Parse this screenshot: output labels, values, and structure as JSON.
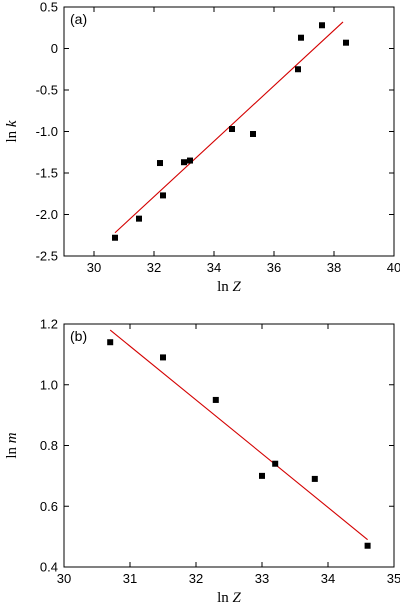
{
  "chart_data": [
    {
      "type": "scatter",
      "panel_label": "(a)",
      "xlabel": {
        "prefix": "ln ",
        "var": "Z"
      },
      "ylabel": {
        "prefix": "ln ",
        "var": "k"
      },
      "xlim": [
        29,
        40
      ],
      "ylim": [
        -2.5,
        0.5
      ],
      "xticks": [
        30,
        32,
        34,
        36,
        38,
        40
      ],
      "yticks": [
        -2.5,
        -2.0,
        -1.5,
        -1.0,
        -0.5,
        0,
        0.5
      ],
      "ytick_labels": [
        "-2.5",
        "-2.0",
        "-1.5",
        "-1.0",
        "-0.5",
        "0",
        "0.5"
      ],
      "grid": false,
      "marker_color": "#000000",
      "fit_color": "#d40000",
      "points": [
        [
          30.7,
          -2.28
        ],
        [
          31.5,
          -2.05
        ],
        [
          32.2,
          -1.38
        ],
        [
          32.3,
          -1.77
        ],
        [
          33.0,
          -1.37
        ],
        [
          33.2,
          -1.35
        ],
        [
          34.6,
          -0.97
        ],
        [
          35.3,
          -1.03
        ],
        [
          36.8,
          -0.25
        ],
        [
          36.9,
          0.13
        ],
        [
          37.6,
          0.28
        ],
        [
          38.4,
          0.07
        ]
      ],
      "fit_line": [
        [
          30.7,
          -2.22
        ],
        [
          38.3,
          0.32
        ]
      ]
    },
    {
      "type": "scatter",
      "panel_label": "(b)",
      "xlabel": {
        "prefix": "ln ",
        "var": "Z"
      },
      "ylabel": {
        "prefix": "ln ",
        "var": "m"
      },
      "xlim": [
        30,
        35
      ],
      "ylim": [
        0.4,
        1.2
      ],
      "xticks": [
        30,
        31,
        32,
        33,
        34,
        35
      ],
      "yticks": [
        0.4,
        0.6,
        0.8,
        1.0,
        1.2
      ],
      "ytick_labels": [
        "0.4",
        "0.6",
        "0.8",
        "1.0",
        "1.2"
      ],
      "grid": false,
      "marker_color": "#000000",
      "fit_color": "#d40000",
      "points": [
        [
          30.7,
          1.14
        ],
        [
          31.5,
          1.09
        ],
        [
          32.3,
          0.95
        ],
        [
          33.0,
          0.7
        ],
        [
          33.2,
          0.74
        ],
        [
          33.8,
          0.69
        ],
        [
          34.6,
          0.47
        ]
      ],
      "fit_line": [
        [
          30.7,
          1.18
        ],
        [
          34.6,
          0.49
        ]
      ]
    }
  ]
}
